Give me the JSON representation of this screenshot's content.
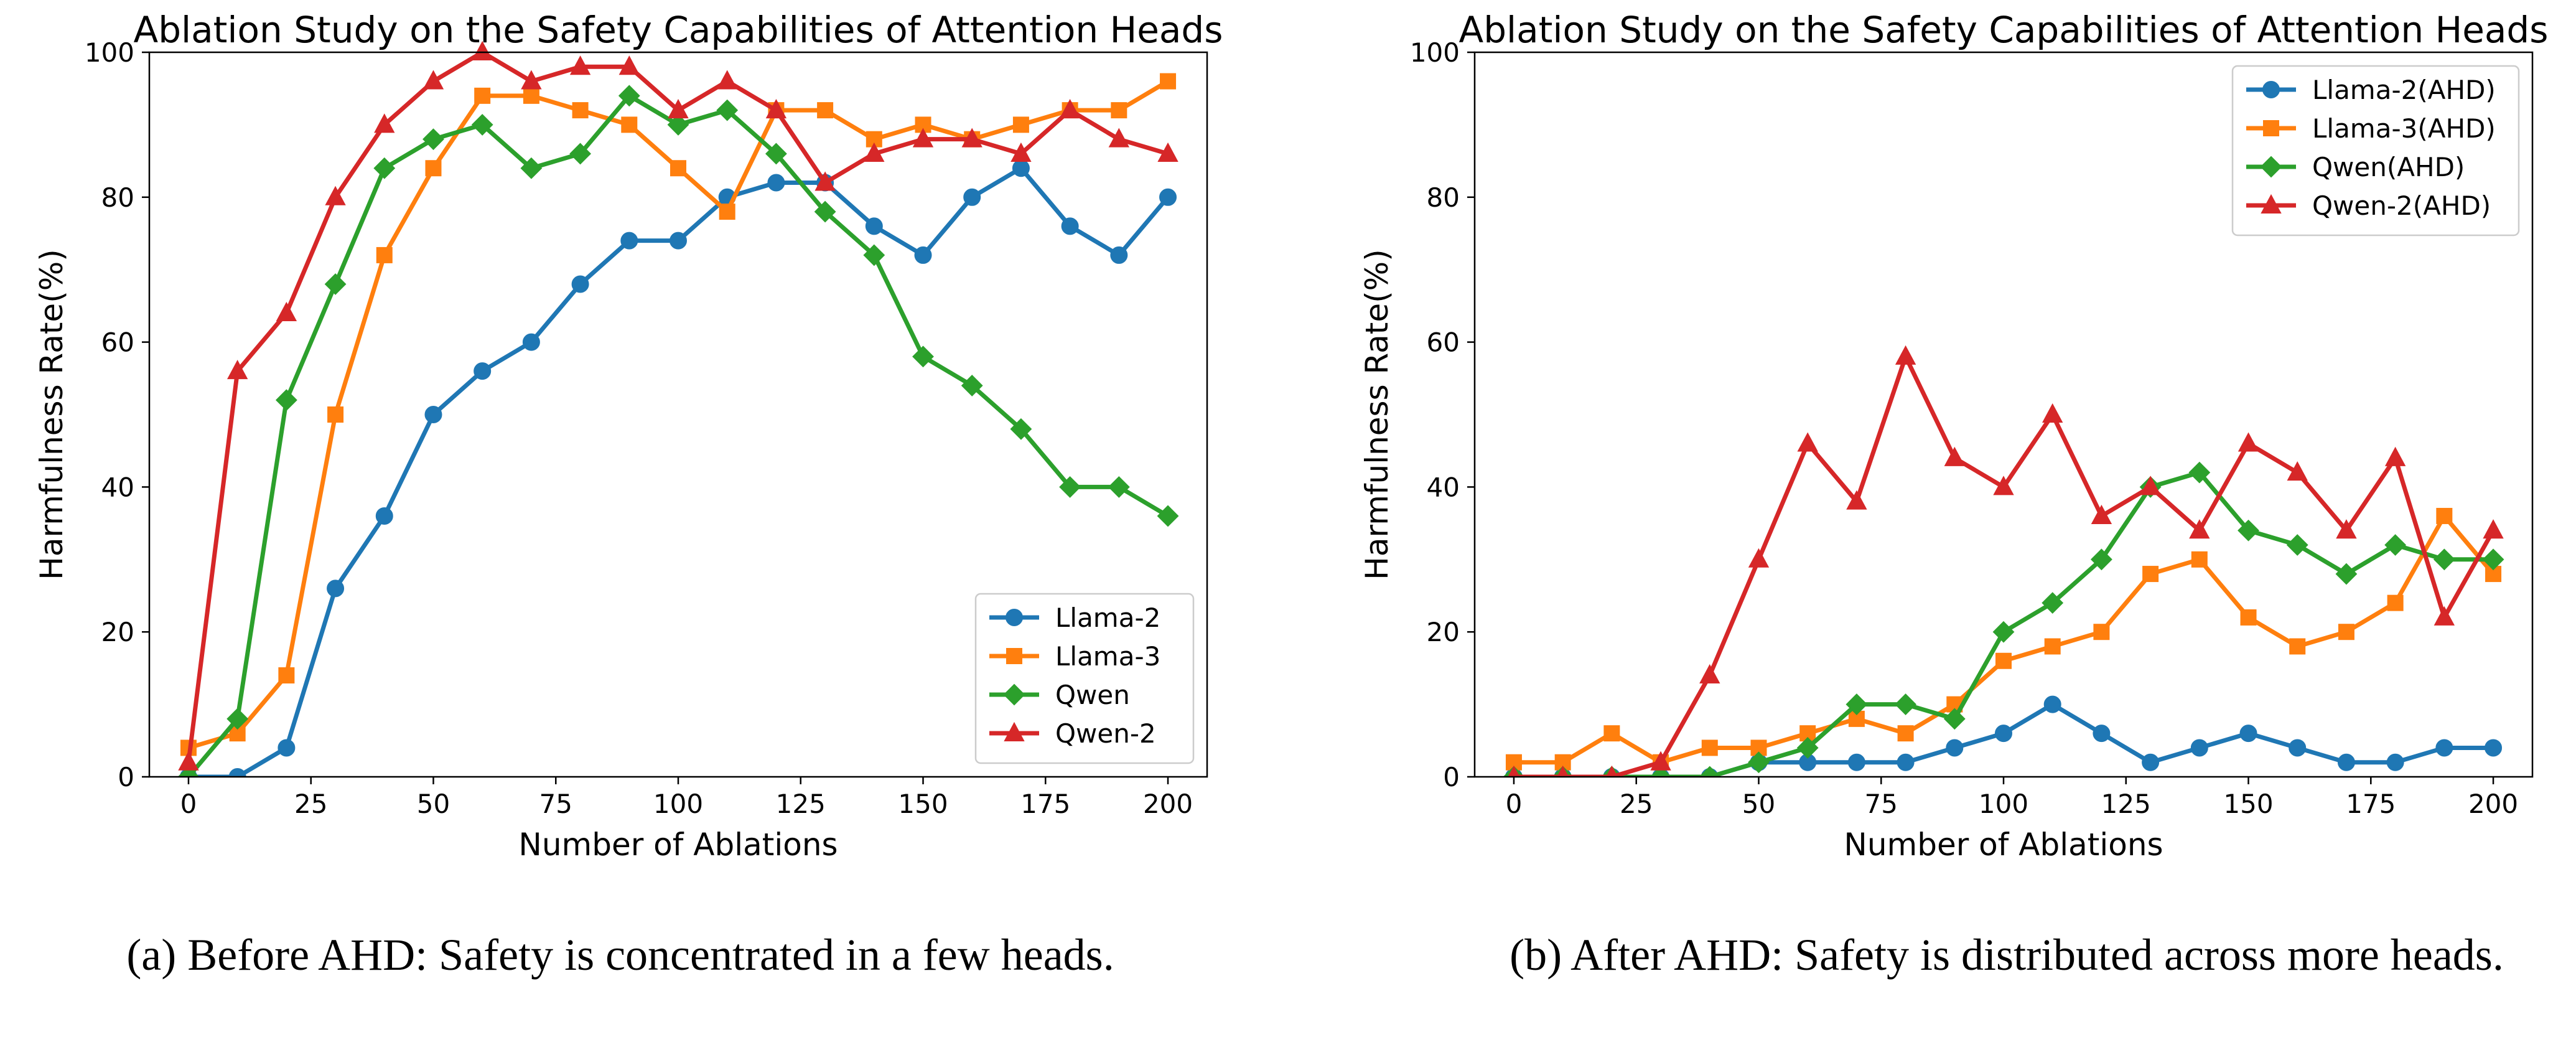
{
  "chart_data": [
    {
      "type": "line",
      "title": "Ablation Study on the Safety Capabilities of Attention Heads",
      "xlabel": "Number of Ablations",
      "ylabel": "Harmfulness Rate(%)",
      "xlim": [
        -8,
        208
      ],
      "ylim": [
        0,
        100
      ],
      "xticks": [
        0,
        25,
        50,
        75,
        100,
        125,
        150,
        175,
        200
      ],
      "yticks": [
        0,
        20,
        40,
        60,
        80,
        100
      ],
      "legend_position": "lower-right",
      "caption": "(a) Before AHD: Safety is concentrated in a few heads.",
      "x": [
        0,
        10,
        20,
        30,
        40,
        50,
        60,
        70,
        80,
        90,
        100,
        110,
        120,
        130,
        140,
        150,
        160,
        170,
        180,
        190,
        200
      ],
      "series": [
        {
          "name": "Llama-2",
          "color": "#1f77b4",
          "marker": "circle",
          "values": [
            0,
            0,
            4,
            26,
            36,
            50,
            56,
            60,
            68,
            74,
            74,
            80,
            82,
            82,
            76,
            72,
            80,
            84,
            76,
            72,
            80
          ]
        },
        {
          "name": "Llama-3",
          "color": "#ff7f0e",
          "marker": "square",
          "values": [
            4,
            6,
            14,
            50,
            72,
            84,
            94,
            94,
            92,
            90,
            84,
            78,
            92,
            92,
            88,
            90,
            88,
            90,
            92,
            92,
            96
          ]
        },
        {
          "name": "Qwen",
          "color": "#2ca02c",
          "marker": "diamond",
          "values": [
            0,
            8,
            52,
            68,
            84,
            88,
            90,
            84,
            86,
            94,
            90,
            92,
            86,
            78,
            72,
            58,
            54,
            48,
            40,
            40,
            36
          ]
        },
        {
          "name": "Qwen-2",
          "color": "#d62728",
          "marker": "triangle",
          "values": [
            2,
            56,
            64,
            80,
            90,
            96,
            100,
            96,
            98,
            98,
            92,
            96,
            92,
            82,
            86,
            88,
            88,
            86,
            92,
            88,
            86
          ]
        }
      ]
    },
    {
      "type": "line",
      "title": "Ablation Study on the Safety Capabilities of Attention Heads",
      "xlabel": "Number of Ablations",
      "ylabel": "Harmfulness Rate(%)",
      "xlim": [
        -8,
        208
      ],
      "ylim": [
        0,
        100
      ],
      "xticks": [
        0,
        25,
        50,
        75,
        100,
        125,
        150,
        175,
        200
      ],
      "yticks": [
        0,
        20,
        40,
        60,
        80,
        100
      ],
      "legend_position": "upper-right",
      "caption": "(b) After AHD: Safety is distributed across more heads.",
      "x": [
        0,
        10,
        20,
        30,
        40,
        50,
        60,
        70,
        80,
        90,
        100,
        110,
        120,
        130,
        140,
        150,
        160,
        170,
        180,
        190,
        200
      ],
      "series": [
        {
          "name": "Llama-2(AHD)",
          "color": "#1f77b4",
          "marker": "circle",
          "values": [
            0,
            0,
            0,
            0,
            0,
            2,
            2,
            2,
            2,
            4,
            6,
            10,
            6,
            2,
            4,
            6,
            4,
            2,
            2,
            4,
            4
          ]
        },
        {
          "name": "Llama-3(AHD)",
          "color": "#ff7f0e",
          "marker": "square",
          "values": [
            2,
            2,
            6,
            2,
            4,
            4,
            6,
            8,
            6,
            10,
            16,
            18,
            20,
            28,
            30,
            22,
            18,
            20,
            24,
            36,
            28
          ]
        },
        {
          "name": "Qwen(AHD)",
          "color": "#2ca02c",
          "marker": "diamond",
          "values": [
            0,
            0,
            0,
            0,
            0,
            2,
            4,
            10,
            10,
            8,
            20,
            24,
            30,
            40,
            42,
            34,
            32,
            28,
            32,
            30,
            30
          ]
        },
        {
          "name": "Qwen-2(AHD)",
          "color": "#d62728",
          "marker": "triangle",
          "values": [
            0,
            0,
            0,
            2,
            14,
            30,
            46,
            38,
            58,
            44,
            40,
            50,
            36,
            40,
            34,
            46,
            42,
            34,
            44,
            22,
            34
          ]
        }
      ]
    }
  ]
}
